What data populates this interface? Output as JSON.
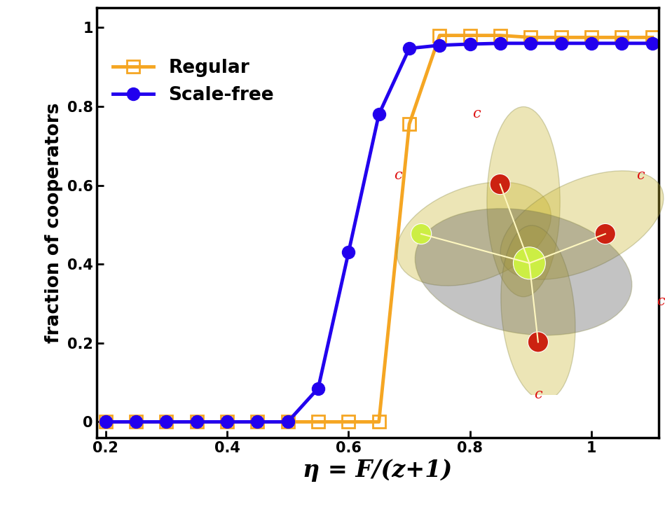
{
  "chart_data": {
    "type": "line",
    "x_label": "η = F/(z+1)",
    "y_label": "fraction of cooperators",
    "x": [
      0.2,
      0.25,
      0.3,
      0.35,
      0.4,
      0.45,
      0.5,
      0.55,
      0.6,
      0.65,
      0.7,
      0.75,
      0.8,
      0.85,
      0.9,
      0.95,
      1.0,
      1.05,
      1.1
    ],
    "series": [
      {
        "name": "Regular",
        "color": "#f5a623",
        "marker": "square_open",
        "values": [
          0,
          0,
          0,
          0,
          0,
          0,
          0,
          0,
          0,
          0,
          0.755,
          0.98,
          0.98,
          0.98,
          0.975,
          0.975,
          0.975,
          0.975,
          0.975
        ]
      },
      {
        "name": "Scale-free",
        "color": "#2200ee",
        "marker": "circle",
        "values": [
          0,
          0,
          0,
          0,
          0,
          0,
          0,
          0.085,
          0.43,
          0.78,
          0.947,
          0.955,
          0.958,
          0.96,
          0.96,
          0.96,
          0.96,
          0.96,
          0.96
        ]
      }
    ],
    "xlim": [
      0.185,
      1.11
    ],
    "ylim": [
      -0.04,
      1.05
    ],
    "xticks": [
      0.2,
      0.4,
      0.6,
      0.8,
      1
    ],
    "yticks": [
      0,
      0.2,
      0.4,
      0.6,
      0.8,
      1
    ],
    "legend": "upper left",
    "annotations": [
      "c",
      "c",
      "c",
      "c",
      "c"
    ]
  }
}
